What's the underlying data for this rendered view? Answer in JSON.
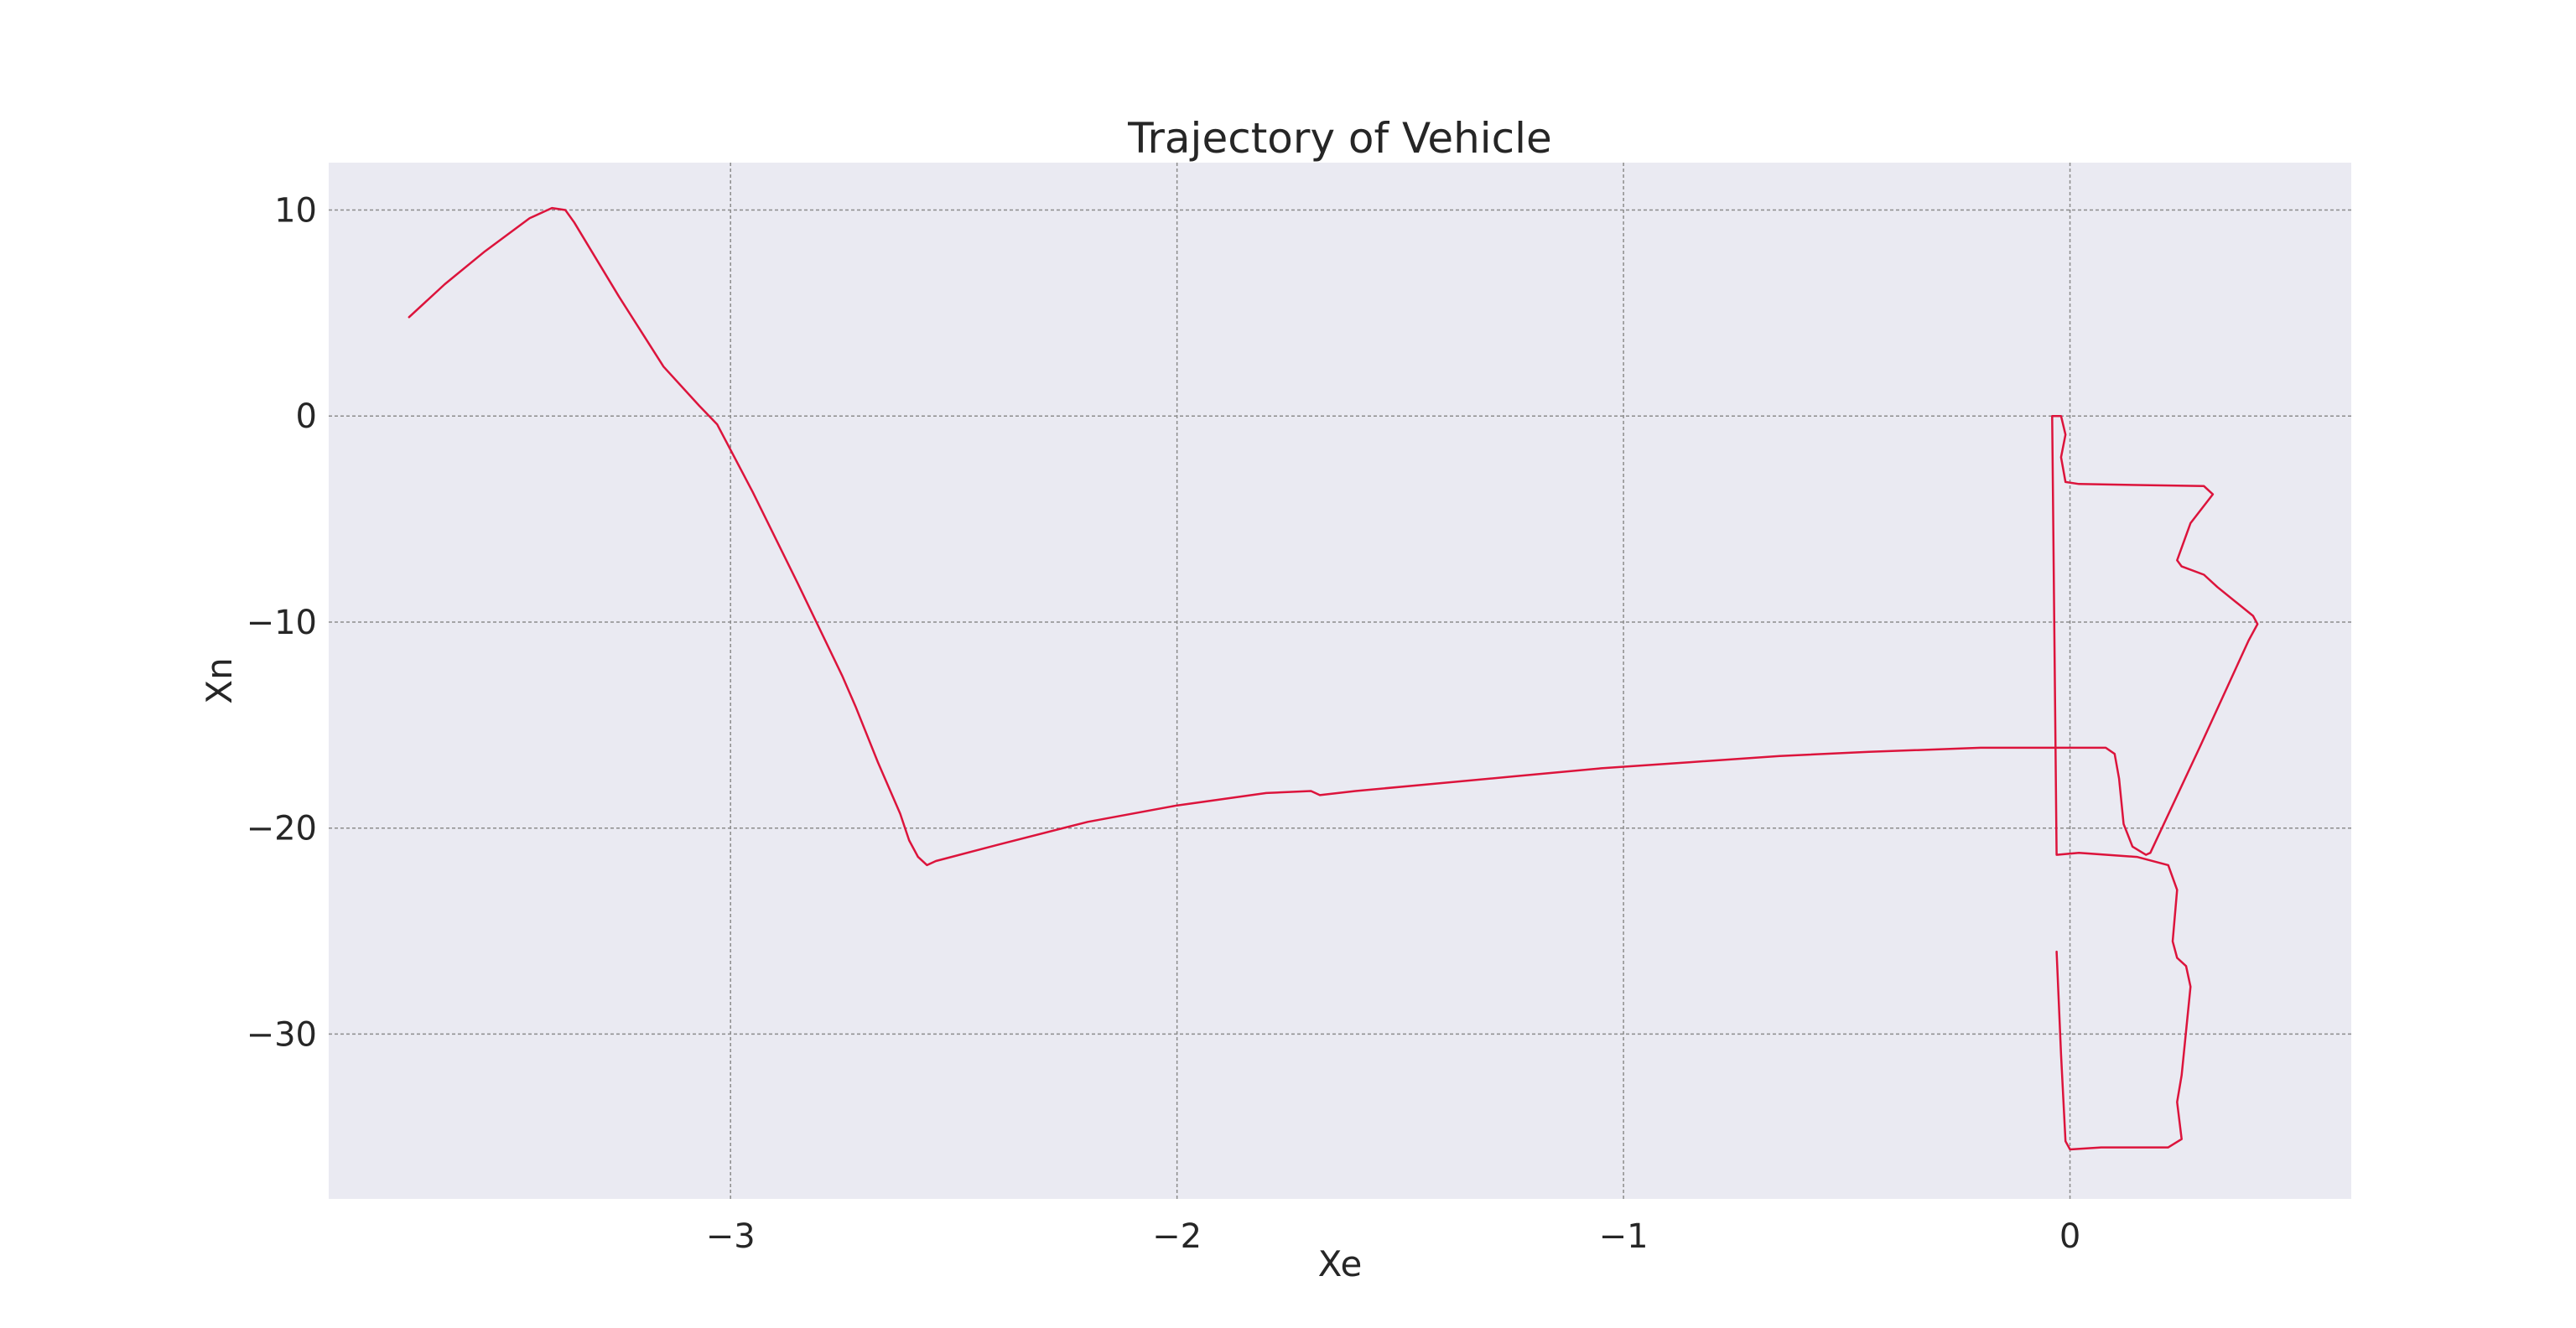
{
  "chart_data": {
    "type": "line",
    "title": "Trajectory of Vehicle",
    "xlabel": "Xe",
    "ylabel": "Xn",
    "xlim": [
      -3.9,
      0.63
    ],
    "ylim": [
      -38.0,
      12.3
    ],
    "xticks": [
      -3,
      -2,
      -1,
      0
    ],
    "xtick_labels": [
      "−3",
      "−2",
      "−1",
      "0"
    ],
    "yticks": [
      10,
      0,
      -10,
      -20,
      -30
    ],
    "ytick_labels": [
      "10",
      "0",
      "−10",
      "−20",
      "−30"
    ],
    "grid": true,
    "colors": {
      "background": "#eaeaf2",
      "grid": "#8c8c8c",
      "line": "#dc143c"
    },
    "series": [
      {
        "x": [
          -3.72,
          -3.64,
          -3.55,
          -3.45,
          -3.4,
          -3.37,
          -3.35,
          -3.25,
          -3.15,
          -3.07,
          -3.03,
          -2.95,
          -2.85,
          -2.75,
          -2.72,
          -2.67,
          -2.62,
          -2.6,
          -2.58,
          -2.56,
          -2.54,
          -2.4,
          -2.2,
          -2.0,
          -1.8,
          -1.7,
          -1.68,
          -1.6,
          -1.45,
          -1.25,
          -1.05,
          -0.85,
          -0.65,
          -0.45,
          -0.2,
          0.0,
          0.08,
          0.1,
          0.11,
          0.12,
          0.14,
          0.17,
          0.18,
          0.29,
          0.4,
          0.42,
          0.41,
          0.33,
          0.3,
          0.25,
          0.24,
          0.27,
          0.32,
          0.31,
          0.3,
          0.02,
          -0.01,
          -0.02,
          -0.01,
          -0.02,
          -0.04,
          -0.03,
          0.02,
          0.15,
          0.22,
          0.24,
          0.23,
          0.24,
          0.26,
          0.27,
          0.25,
          0.24,
          0.25,
          0.22,
          0.07,
          0.0,
          -0.01,
          -0.02,
          -0.03
        ],
        "y": [
          4.8,
          6.4,
          8.0,
          9.6,
          10.1,
          10.0,
          9.4,
          5.8,
          2.4,
          0.5,
          -0.4,
          -3.7,
          -8.1,
          -12.6,
          -14.1,
          -16.8,
          -19.3,
          -20.6,
          -21.4,
          -21.8,
          -21.6,
          -20.8,
          -19.7,
          -18.9,
          -18.3,
          -18.2,
          -18.4,
          -18.2,
          -17.9,
          -17.5,
          -17.1,
          -16.8,
          -16.5,
          -16.3,
          -16.1,
          -16.1,
          -16.1,
          -16.4,
          -17.6,
          -19.8,
          -20.9,
          -21.3,
          -21.2,
          -16.1,
          -10.9,
          -10.1,
          -9.7,
          -8.3,
          -7.7,
          -7.3,
          -7.0,
          -5.2,
          -3.8,
          -3.6,
          -3.4,
          -3.3,
          -3.2,
          -2.0,
          -0.9,
          0.0,
          0.0,
          -21.3,
          -21.2,
          -21.4,
          -21.8,
          -23.0,
          -25.5,
          -26.3,
          -26.7,
          -27.7,
          -32.0,
          -33.3,
          -35.1,
          -35.5,
          -35.5,
          -35.6,
          -35.2,
          -31.0,
          -26.0
        ]
      }
    ]
  }
}
